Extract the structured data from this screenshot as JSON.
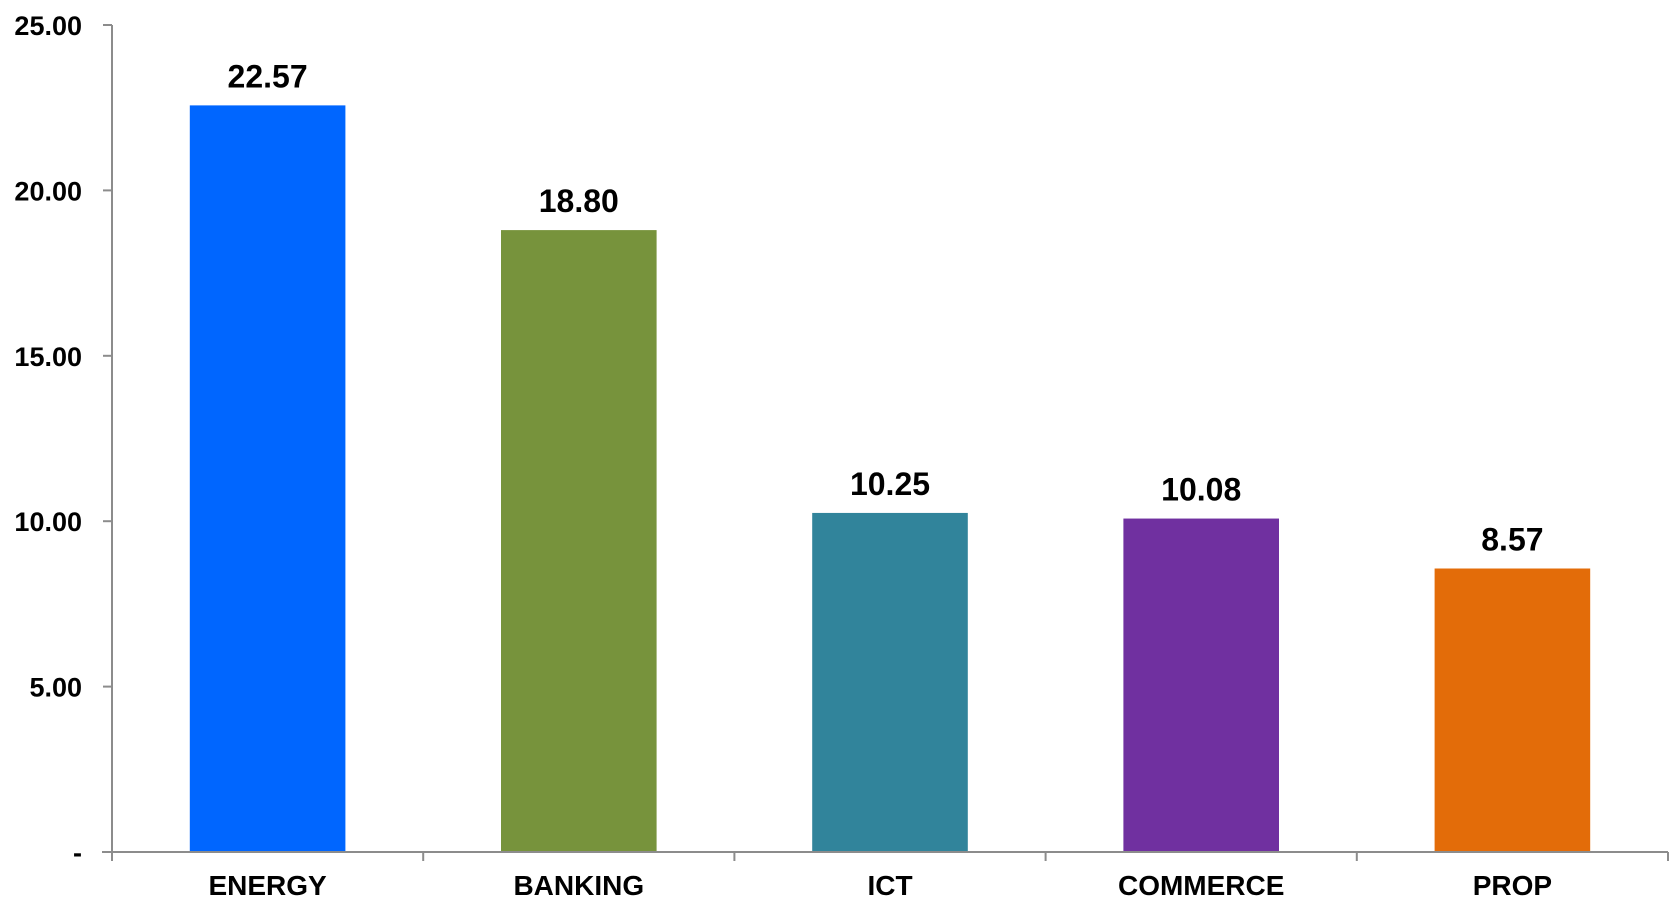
{
  "chart_data": {
    "type": "bar",
    "categories": [
      "ENERGY",
      "BANKING",
      "ICT",
      "COMMERCE",
      "PROP"
    ],
    "values": [
      22.57,
      18.8,
      10.25,
      10.08,
      8.57
    ],
    "data_labels": [
      "22.57",
      "18.80",
      "10.25",
      "10.08",
      "8.57"
    ],
    "colors": [
      "#0066ff",
      "#77933c",
      "#31849b",
      "#7030a0",
      "#e36c09"
    ],
    "ylim": [
      0,
      25
    ],
    "y_ticks": [
      0,
      5,
      10,
      15,
      20,
      25
    ],
    "y_tick_labels": [
      "-",
      "5.00",
      "10.00",
      "15.00",
      "20.00",
      "25.00"
    ],
    "title": "",
    "xlabel": "",
    "ylabel": "",
    "grid": false,
    "legend": "none"
  }
}
